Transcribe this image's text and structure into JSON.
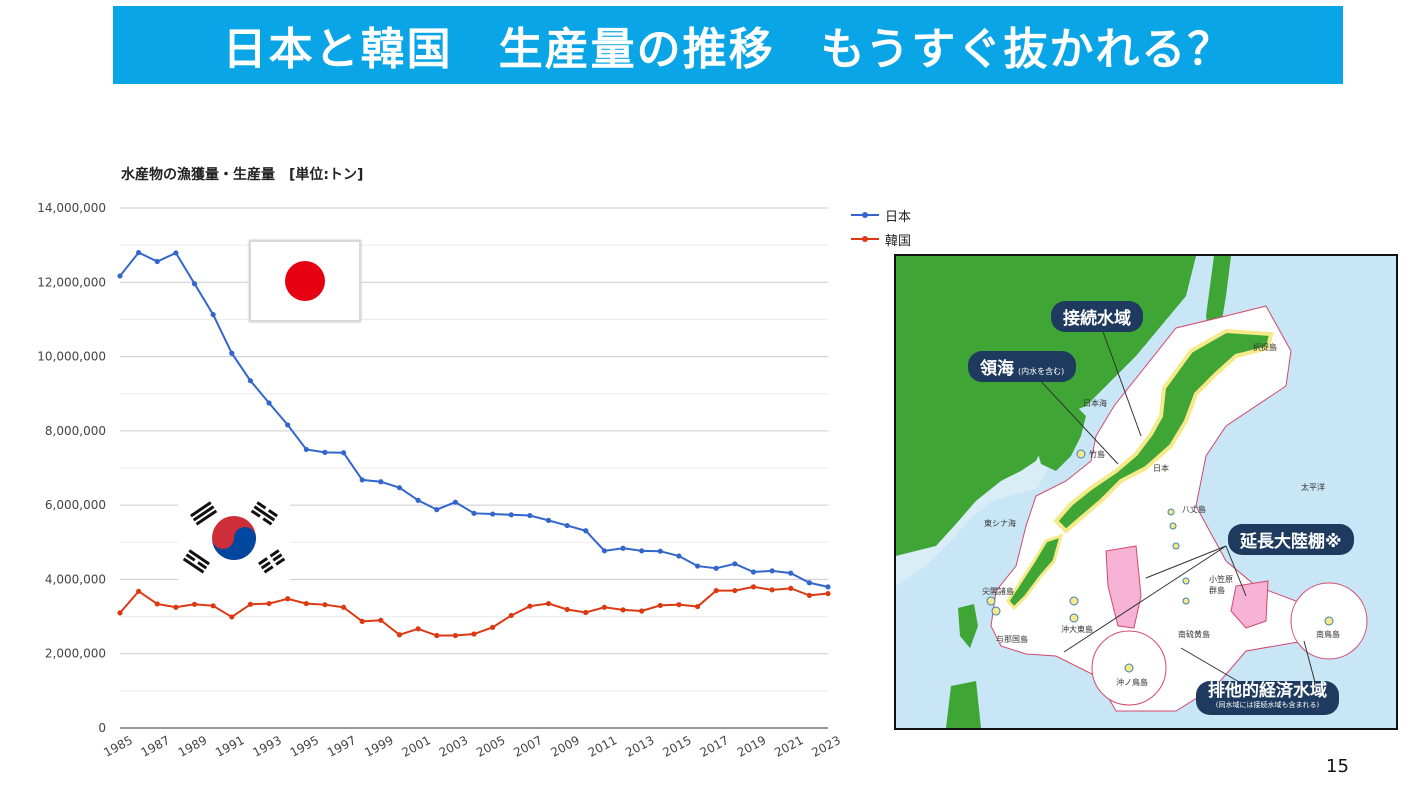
{
  "title": "日本と韓国　生産量の推移　もうすぐ抜かれる？",
  "chart_data": {
    "type": "line",
    "title": "水産物の漁獲量・生産量　[単位:トン]",
    "x": [
      1985,
      1986,
      1987,
      1988,
      1989,
      1990,
      1991,
      1992,
      1993,
      1994,
      1995,
      1996,
      1997,
      1998,
      1999,
      2000,
      2001,
      2002,
      2003,
      2004,
      2005,
      2006,
      2007,
      2008,
      2009,
      2010,
      2011,
      2012,
      2013,
      2014,
      2015,
      2016,
      2017,
      2018,
      2019,
      2020,
      2021,
      2022,
      2023
    ],
    "x_tick_labels": [
      "1985",
      "1987",
      "1989",
      "1991",
      "1993",
      "1995",
      "1997",
      "1999",
      "2001",
      "2003",
      "2005",
      "2007",
      "2009",
      "2011",
      "2013",
      "2015",
      "2017",
      "2019",
      "2021",
      "2023"
    ],
    "y_tick_labels": [
      "0",
      "2,000,000",
      "4,000,000",
      "6,000,000",
      "8,000,000",
      "10,000,000",
      "12,000,000",
      "14,000,000"
    ],
    "ylim": [
      0,
      14000000
    ],
    "grid": true,
    "legend_position": "right",
    "series": [
      {
        "name": "日本",
        "color": "#3366cc",
        "values": [
          12170000,
          12800000,
          12560000,
          12790000,
          11960000,
          11130000,
          10090000,
          9350000,
          8750000,
          8160000,
          7500000,
          7420000,
          7410000,
          6680000,
          6630000,
          6470000,
          6130000,
          5880000,
          6080000,
          5780000,
          5760000,
          5740000,
          5720000,
          5590000,
          5450000,
          5310000,
          4770000,
          4840000,
          4770000,
          4760000,
          4630000,
          4360000,
          4300000,
          4420000,
          4200000,
          4230000,
          4170000,
          3910000,
          3800000
        ]
      },
      {
        "name": "韓国",
        "color": "#dc3912",
        "values": [
          3100000,
          3680000,
          3340000,
          3250000,
          3330000,
          3290000,
          2990000,
          3330000,
          3350000,
          3480000,
          3350000,
          3320000,
          3250000,
          2870000,
          2900000,
          2510000,
          2670000,
          2490000,
          2490000,
          2530000,
          2710000,
          3030000,
          3280000,
          3350000,
          3190000,
          3110000,
          3250000,
          3180000,
          3150000,
          3300000,
          3320000,
          3270000,
          3700000,
          3700000,
          3800000,
          3720000,
          3760000,
          3570000,
          3620000
        ]
      }
    ]
  },
  "map": {
    "labels": {
      "contiguous_zone": "接続水域",
      "territorial_sea": "領海",
      "territorial_sea_note": "(内水を含む)",
      "extended_shelf": "延長大陸棚※",
      "eez": "排他的経済水域",
      "eez_note": "(同水域には接続水域も含まれる)"
    },
    "places": {
      "etorofu": "択捉島",
      "sea_of_japan": "日本海",
      "takeshima": "竹島",
      "japan": "日本",
      "pacific": "太平洋",
      "east_china_sea": "東シナ海",
      "hachijo": "八丈島",
      "senkaku": "尖閣諸島",
      "yonaguni": "与那国島",
      "okidaito": "沖大東島",
      "ogasawara_1": "小笠原",
      "ogasawara_2": "群島",
      "minamiio": "南硫黄島",
      "okinotori": "沖ノ鳥島",
      "minamitori": "南鳥島"
    }
  },
  "page_number": "15"
}
